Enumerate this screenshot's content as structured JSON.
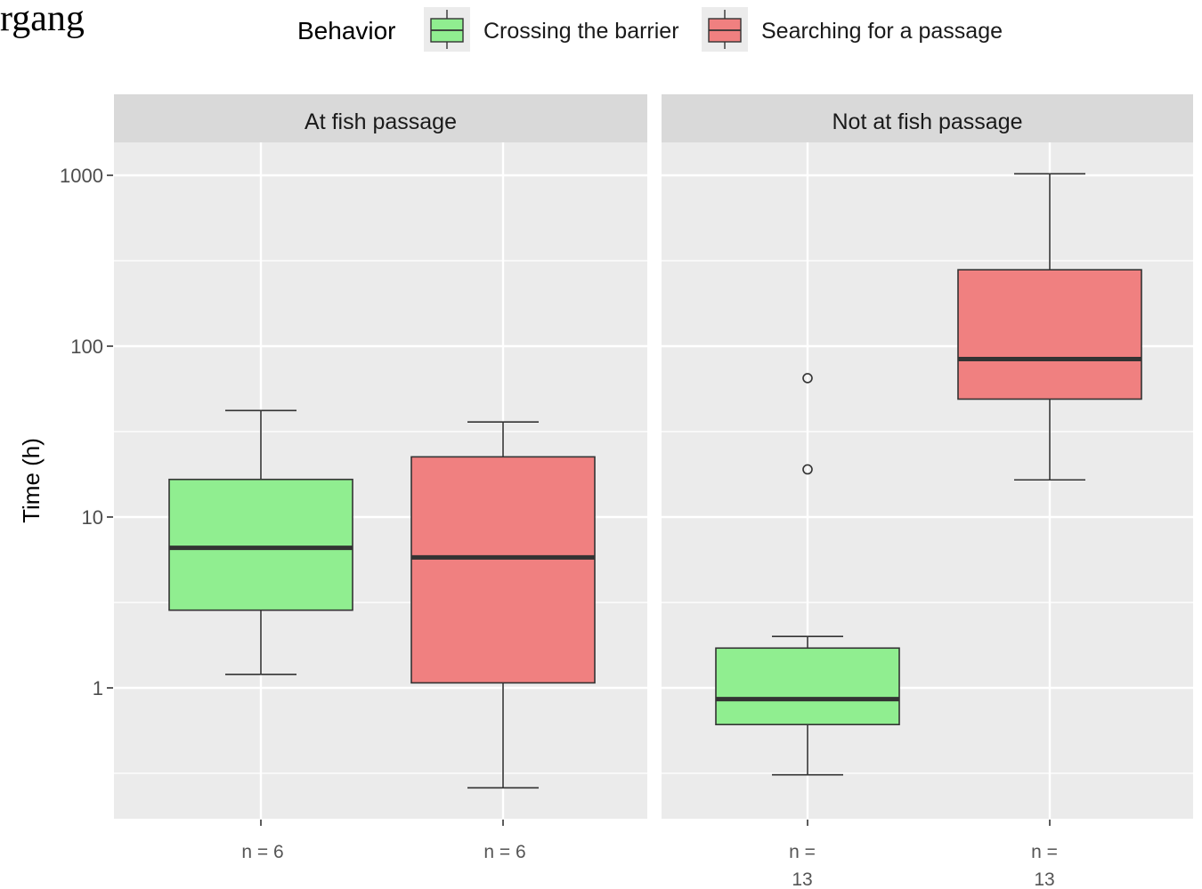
{
  "corner_text": "rgang",
  "chart_data": {
    "type": "box",
    "ylabel": "Time (h)",
    "y_scale": "log10",
    "y_ticks": [
      1,
      10,
      100,
      1000
    ],
    "y_tick_labels": [
      "1",
      "10",
      "100",
      "1000"
    ],
    "ylim": [
      0.2,
      1600
    ],
    "grid": true,
    "legend": {
      "title": "Behavior",
      "position": "top",
      "entries": [
        {
          "label": "Crossing the barrier",
          "color": "#90EE90"
        },
        {
          "label": "Searching for a passage",
          "color": "#F08080"
        }
      ]
    },
    "facets": [
      {
        "label": "At fish passage",
        "boxes": [
          {
            "series": "Crossing the barrier",
            "n_label": [
              "n = 6"
            ],
            "whisker_low": 1.2,
            "q1": 2.85,
            "median": 6.6,
            "q3": 16.6,
            "whisker_high": 42,
            "outliers": []
          },
          {
            "series": "Searching for a passage",
            "n_label": [
              "n = 6"
            ],
            "whisker_low": 0.26,
            "q1": 1.07,
            "median": 5.8,
            "q3": 22.5,
            "whisker_high": 36,
            "outliers": []
          }
        ]
      },
      {
        "label": "Not at fish passage",
        "boxes": [
          {
            "series": "Crossing the barrier",
            "n_label": [
              "n =",
              "13"
            ],
            "whisker_low": 0.31,
            "q1": 0.61,
            "median": 0.86,
            "q3": 1.71,
            "whisker_high": 2.0,
            "outliers": [
              19,
              65
            ]
          },
          {
            "series": "Searching for a passage",
            "n_label": [
              "n =",
              "13"
            ],
            "whisker_low": 16.5,
            "q1": 49,
            "median": 84,
            "q3": 280,
            "whisker_high": 1020,
            "outliers": []
          }
        ]
      }
    ]
  }
}
